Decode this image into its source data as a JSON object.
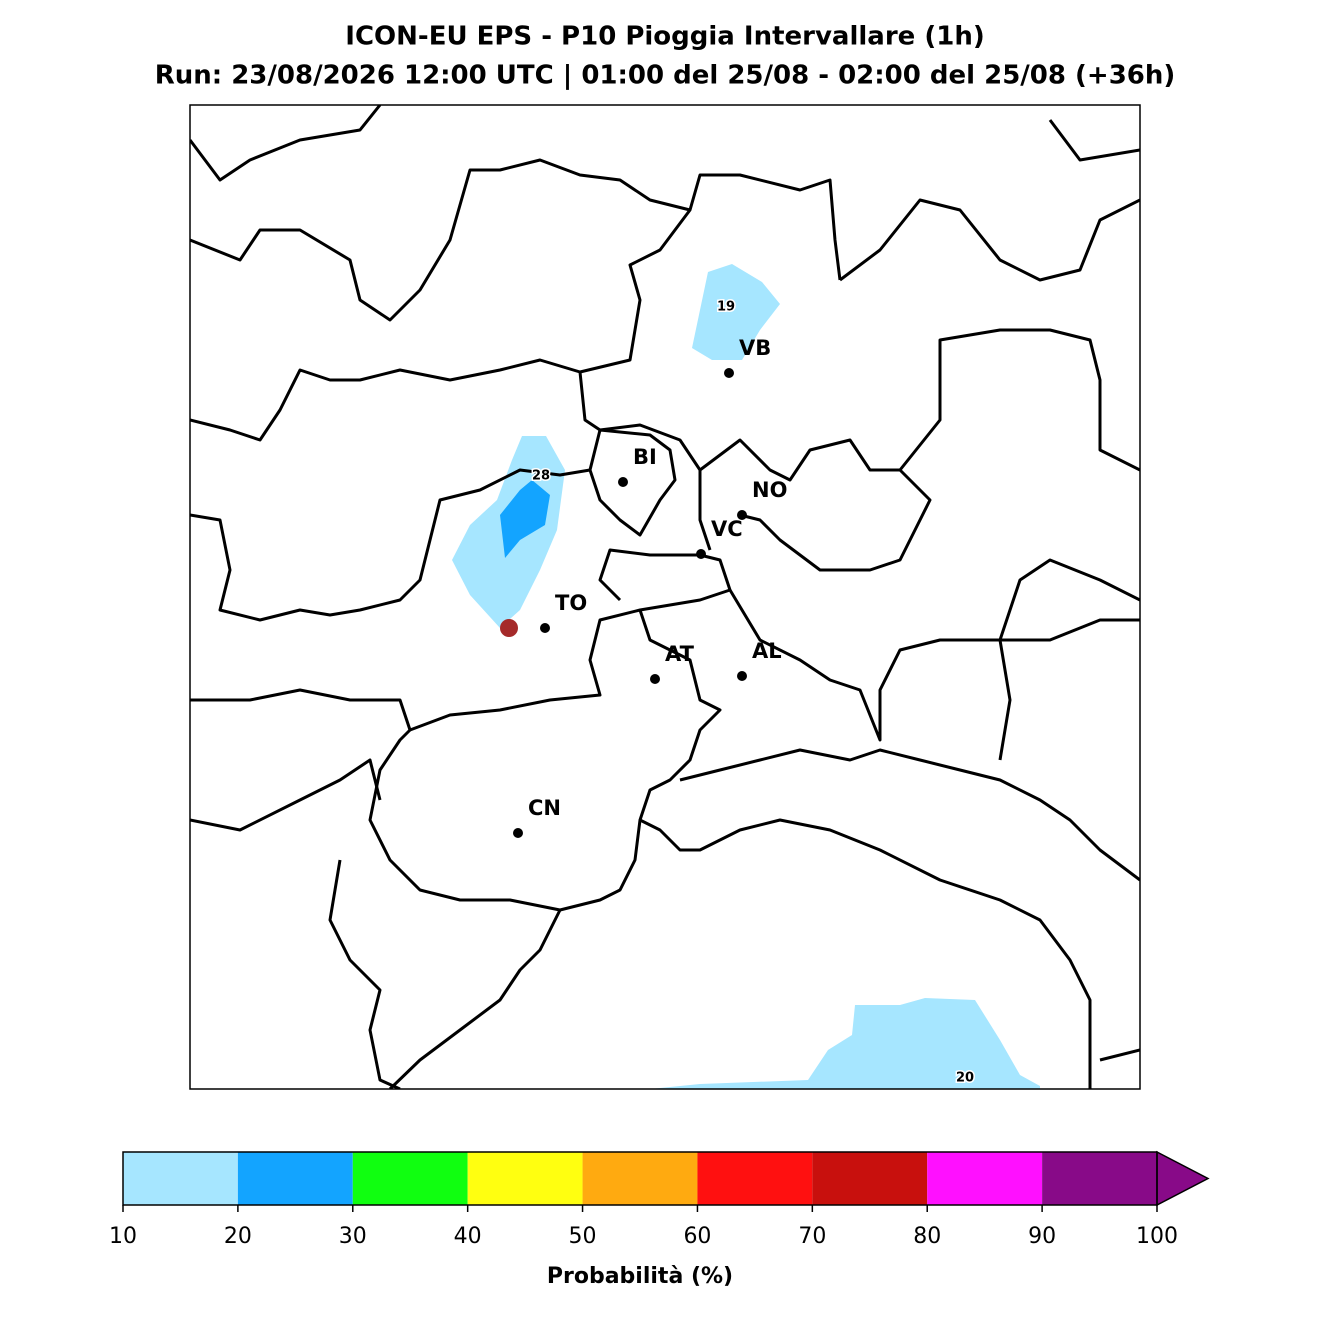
{
  "header": {
    "title": "ICON-EU EPS - P10 Pioggia Intervallare (1h)",
    "subtitle": "Run: 23/08/2026 12:00 UTC | 01:00 del 25/08 - 02:00 del 25/08 (+36h)"
  },
  "cities": [
    "VB",
    "BI",
    "NO",
    "VC",
    "TO",
    "AT",
    "AL",
    "CN"
  ],
  "contour_labels": [
    "19",
    "28",
    "20"
  ],
  "colorbar": {
    "ticks": [
      10,
      20,
      30,
      40,
      50,
      60,
      70,
      80,
      90,
      100
    ],
    "colors": [
      "#a6e6ff",
      "#13a4ff",
      "#10ff10",
      "#ffff10",
      "#ffaa10",
      "#ff1010",
      "#c8100d",
      "#ff10ff",
      "#880a88"
    ],
    "extend": "max",
    "label": "Probabilità (%)"
  }
}
